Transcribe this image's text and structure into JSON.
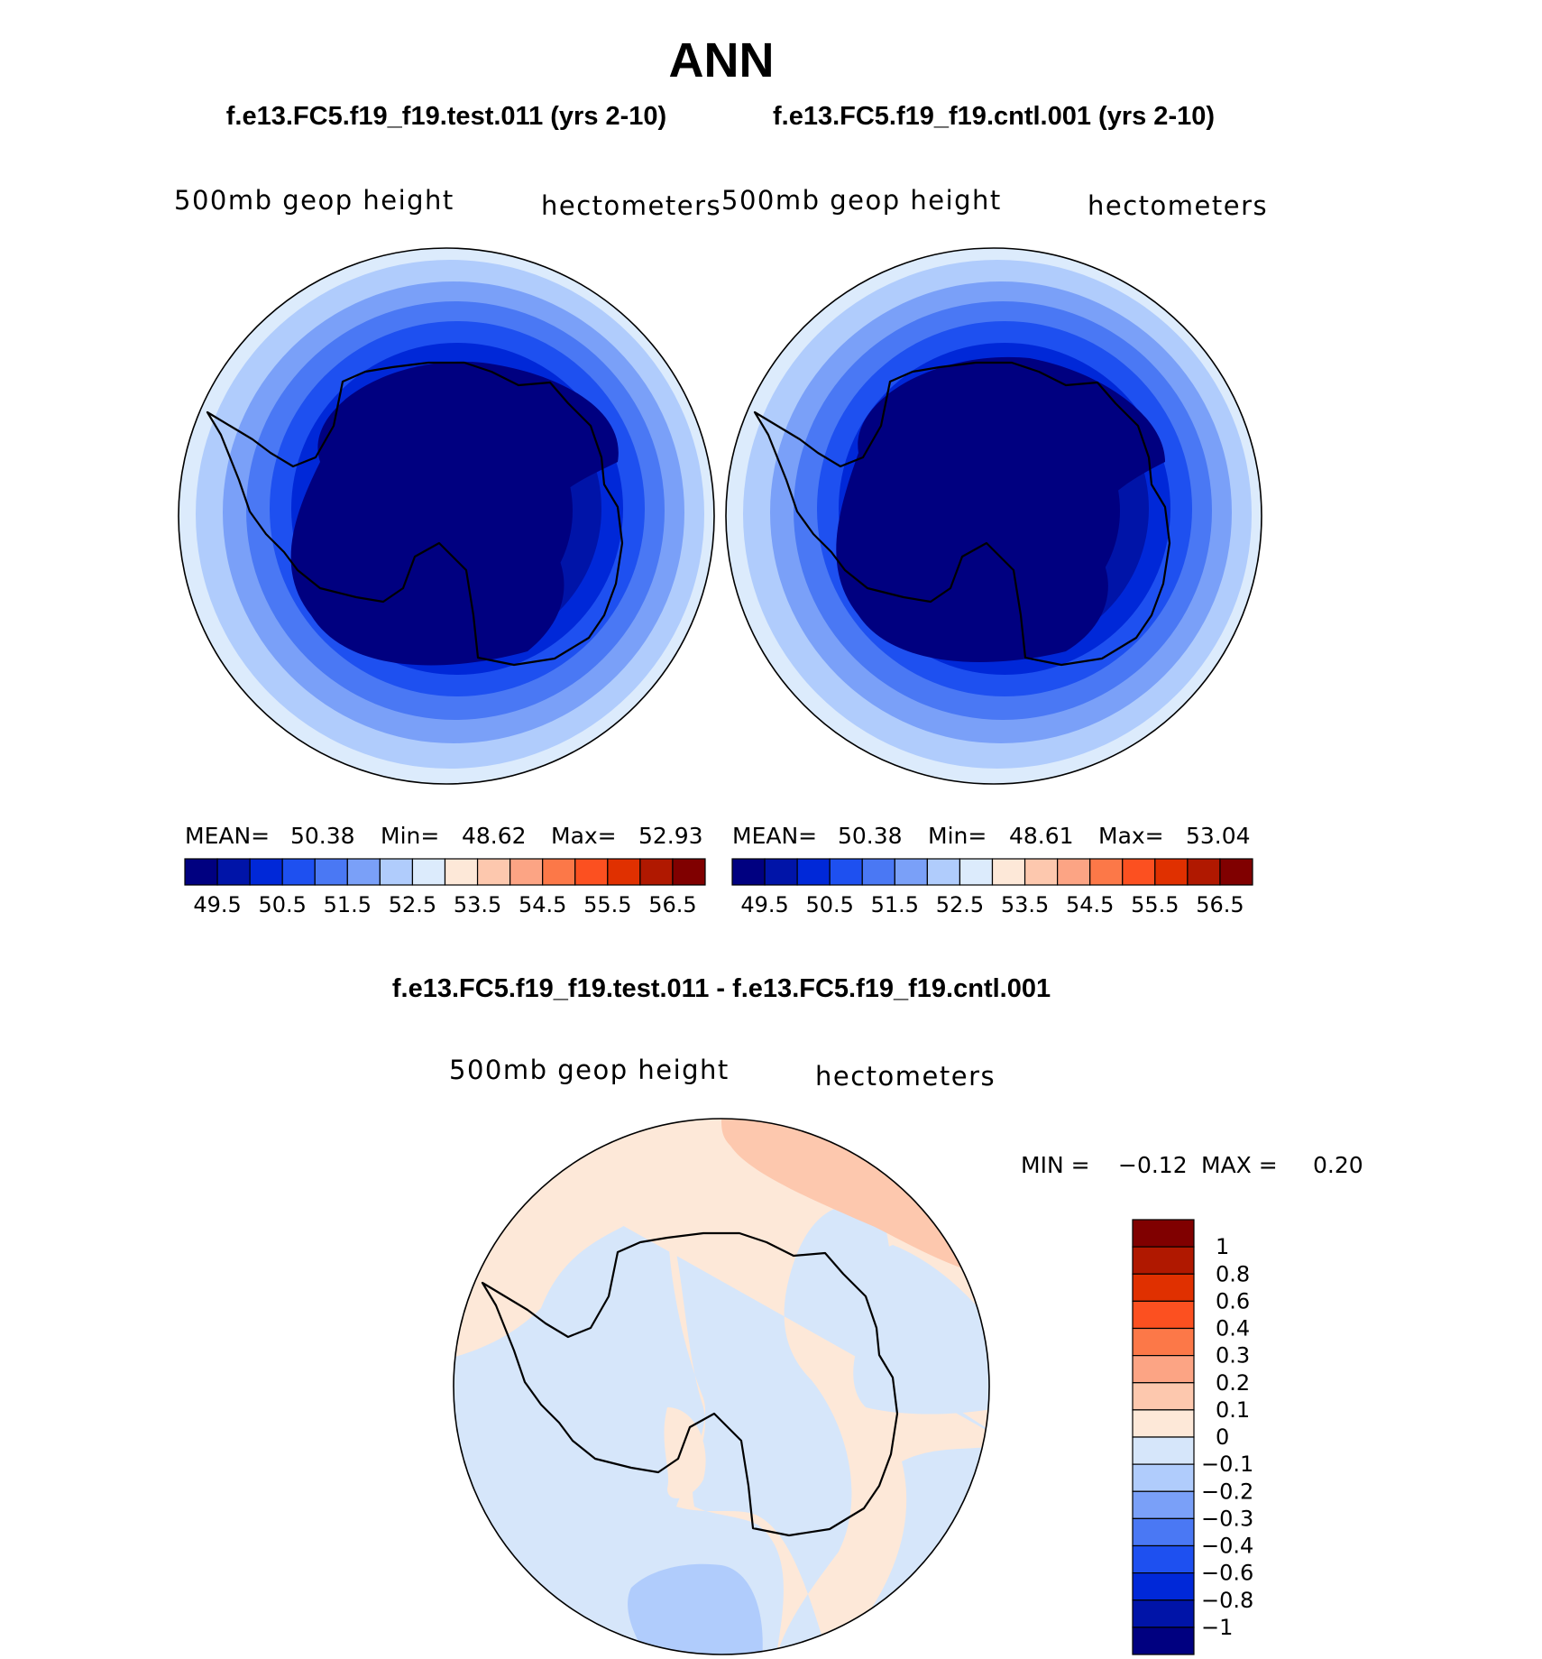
{
  "figure": {
    "title": "ANN",
    "test_case_title": "f.e13.FC5.f19_f19.test.011 (yrs 2-10)",
    "control_case_title": "f.e13.FC5.f19_f19.cntl.001 (yrs 2-10)",
    "difference_title": "f.e13.FC5.f19_f19.test.011 - f.e13.FC5.f19_f19.cntl.001"
  },
  "panels": [
    {
      "id": "test",
      "variable": "500mb geop height",
      "units": "hectometers",
      "mean_label": "MEAN=",
      "mean": "50.38",
      "min_label": "Min=",
      "min": "48.62",
      "max_label": "Max=",
      "max": "52.93"
    },
    {
      "id": "cntl",
      "variable": "500mb geop height",
      "units": "hectometers",
      "mean_label": "MEAN=",
      "mean": "50.38",
      "min_label": "Min=",
      "min": "48.61",
      "max_label": "Max=",
      "max": "53.04"
    },
    {
      "id": "diff",
      "variable": "500mb geop height",
      "units": "hectometers",
      "min_label": "MIN =",
      "min": "−0.12",
      "max_label": "MAX =",
      "max": "0.20"
    }
  ],
  "colorbar_horizontal": {
    "colors": [
      "#000080",
      "#0014a8",
      "#0028d8",
      "#1e50f0",
      "#4a78f4",
      "#7aa0f8",
      "#b0ccfc",
      "#dcebfc",
      "#fde8d8",
      "#fdc8ae",
      "#fca484",
      "#fc7848",
      "#fc5020",
      "#e03000",
      "#b01800",
      "#800000"
    ],
    "tick_labels": [
      "49.5",
      "50.5",
      "51.5",
      "52.5",
      "53.5",
      "54.5",
      "55.5",
      "56.5"
    ]
  },
  "colorbar_vertical": {
    "colors_top_to_bottom": [
      "#800000",
      "#b01800",
      "#e03000",
      "#fc5020",
      "#fc7848",
      "#fca484",
      "#fdc8ae",
      "#fde8d8",
      "#d6e6fa",
      "#b0ccfc",
      "#7aa0f8",
      "#4a78f4",
      "#1e50f0",
      "#0028d8",
      "#0014a8",
      "#000080"
    ],
    "tick_labels_top_to_bottom": [
      "1",
      "0.8",
      "0.6",
      "0.4",
      "0.3",
      "0.2",
      "0.1",
      "0",
      "−0.1",
      "−0.2",
      "−0.3",
      "−0.4",
      "−0.6",
      "−0.8",
      "−1"
    ]
  },
  "map_colors": {
    "ring_outer_to_inner": [
      "#dcebfc",
      "#b0ccfc",
      "#7aa0f8",
      "#4a78f4",
      "#1e50f0",
      "#0028d8",
      "#0014a8",
      "#000080"
    ],
    "diff_positive": "#fde8d8",
    "diff_positive_strong": "#fdc8ae",
    "diff_negative": "#d6e6fa",
    "diff_negative_strong": "#b0ccfc",
    "coastline": "#000000"
  }
}
